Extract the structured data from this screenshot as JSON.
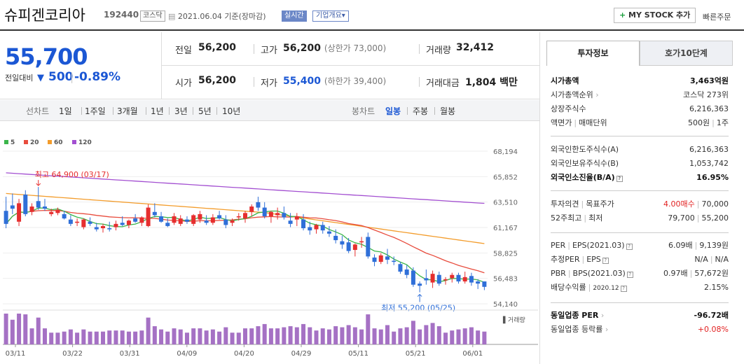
{
  "header": {
    "stock_name": "슈피겐코리아",
    "stock_code": "192440",
    "market": "코스닥",
    "date_text": "2021.06.04 기준(장마감)",
    "realtime_label": "실시간",
    "overview_label": "기업개요▾",
    "mystock_label": "MY STOCK 추가",
    "quick_order_label": "빠른주문"
  },
  "price": {
    "current": "55,700",
    "change_label": "전일대비",
    "change_amount": "500",
    "change_percent": "-0.89%",
    "arrow": "▼"
  },
  "quotes": {
    "prev_close_label": "전일",
    "prev_close": "56,200",
    "high_label": "고가",
    "high": "56,200",
    "upper_limit": "(상한가 73,000)",
    "volume_label": "거래량",
    "volume": "32,412",
    "open_label": "시가",
    "open": "56,200",
    "low_label": "저가",
    "low": "55,400",
    "lower_limit": "(하한가 39,400)",
    "trade_value_label": "거래대금",
    "trade_value": "1,804",
    "trade_value_unit": "백만"
  },
  "period_bar": {
    "line_chart_label": "선차트",
    "line_periods": [
      "1일",
      "1주일",
      "3개월",
      "1년",
      "3년",
      "5년",
      "10년"
    ],
    "candle_label": "봉차트",
    "candle_periods": [
      "일봉",
      "주봉",
      "월봉"
    ],
    "active_candle": "일봉"
  },
  "legend": [
    {
      "label": "5",
      "color": "#3bb54a"
    },
    {
      "label": "20",
      "color": "#e84c3d"
    },
    {
      "label": "60",
      "color": "#f39c2b"
    },
    {
      "label": "120",
      "color": "#a34fd1"
    }
  ],
  "chart_data": {
    "type": "candlestick",
    "y_ticks": [
      "68,194",
      "65,852",
      "63,510",
      "61,167",
      "58,825",
      "56,483",
      "54,140"
    ],
    "ylim": [
      54140,
      68194
    ],
    "x_ticks": [
      "03/11",
      "03/22",
      "03/31",
      "04/09",
      "04/20",
      "04/29",
      "05/11",
      "05/21",
      "06/01"
    ],
    "high_annotation": "최고 64,900 (03/17)",
    "low_annotation": "최저 55,200 (05/25)",
    "volume_label": "거래량",
    "ohlc": [
      [
        62700,
        64000,
        61100,
        61500
      ],
      [
        63200,
        64300,
        62400,
        62900
      ],
      [
        61700,
        63800,
        61300,
        63400
      ],
      [
        64200,
        64600,
        62200,
        62400
      ],
      [
        62600,
        63400,
        62300,
        63100
      ],
      [
        63600,
        64900,
        62800,
        63000
      ],
      [
        63100,
        63800,
        62700,
        62900
      ],
      [
        62400,
        62900,
        62200,
        62600
      ],
      [
        62500,
        63000,
        62300,
        62800
      ],
      [
        62400,
        62700,
        61900,
        62000
      ],
      [
        61900,
        62300,
        61300,
        61500
      ],
      [
        61600,
        62000,
        61300,
        61700
      ],
      [
        61200,
        62000,
        61000,
        61900
      ],
      [
        61700,
        62100,
        61300,
        61500
      ],
      [
        61200,
        61600,
        60800,
        61000
      ],
      [
        61100,
        61500,
        60700,
        61300
      ],
      [
        61100,
        61700,
        60800,
        61000
      ],
      [
        61200,
        61800,
        60900,
        61500
      ],
      [
        61600,
        62200,
        61300,
        61400
      ],
      [
        61400,
        61900,
        61100,
        61800
      ],
      [
        62000,
        62400,
        61600,
        61700
      ],
      [
        61600,
        62200,
        61300,
        62100
      ],
      [
        61300,
        63300,
        61200,
        63000
      ],
      [
        62600,
        63400,
        62100,
        62300
      ],
      [
        62200,
        62600,
        61600,
        61700
      ],
      [
        61600,
        62000,
        61200,
        61300
      ],
      [
        61600,
        62500,
        61400,
        62200
      ],
      [
        61500,
        62300,
        61300,
        62000
      ],
      [
        61900,
        62200,
        61500,
        61700
      ],
      [
        61500,
        62400,
        61300,
        62300
      ],
      [
        61900,
        62700,
        61600,
        62400
      ],
      [
        61800,
        62300,
        61400,
        61600
      ],
      [
        61600,
        62400,
        61400,
        62100
      ],
      [
        62300,
        62700,
        61900,
        62000
      ],
      [
        61900,
        62300,
        61100,
        61400
      ],
      [
        61600,
        62000,
        61300,
        61800
      ],
      [
        62100,
        62500,
        61800,
        62200
      ],
      [
        62000,
        62700,
        61600,
        62500
      ],
      [
        62600,
        63300,
        62200,
        63100
      ],
      [
        63500,
        64000,
        62700,
        63000
      ],
      [
        63000,
        63500,
        62000,
        62200
      ],
      [
        62200,
        62700,
        61600,
        62600
      ],
      [
        62300,
        63000,
        61900,
        62500
      ],
      [
        62500,
        63100,
        61900,
        62100
      ],
      [
        61800,
        62500,
        61200,
        61500
      ],
      [
        61900,
        62500,
        61300,
        62200
      ],
      [
        61900,
        62400,
        60900,
        61100
      ],
      [
        61200,
        61700,
        60500,
        60900
      ],
      [
        61000,
        61500,
        60600,
        61400
      ],
      [
        61400,
        61700,
        60600,
        60900
      ],
      [
        60800,
        61300,
        60300,
        60600
      ],
      [
        60400,
        61000,
        59700,
        60000
      ],
      [
        59900,
        60400,
        59200,
        59600
      ],
      [
        59800,
        60200,
        58800,
        59000
      ],
      [
        59100,
        59700,
        58500,
        59600
      ],
      [
        59800,
        60300,
        59300,
        59900
      ],
      [
        60300,
        60700,
        58300,
        58500
      ],
      [
        58400,
        58700,
        57600,
        58000
      ],
      [
        58000,
        58800,
        57800,
        58600
      ],
      [
        58500,
        59200,
        57800,
        58200
      ],
      [
        58100,
        58500,
        57700,
        58000
      ],
      [
        57800,
        58000,
        56900,
        57100
      ],
      [
        57300,
        57700,
        56500,
        56800
      ],
      [
        57200,
        57500,
        55700,
        55900
      ],
      [
        56000,
        56200,
        55200,
        55800
      ],
      [
        56500,
        57300,
        55900,
        56300
      ],
      [
        56100,
        57200,
        55600,
        56900
      ],
      [
        56800,
        57100,
        55800,
        56000
      ],
      [
        56300,
        56600,
        55900,
        56400
      ],
      [
        56500,
        57000,
        56100,
        56800
      ],
      [
        56800,
        57000,
        56000,
        56200
      ],
      [
        56200,
        57100,
        56000,
        56600
      ],
      [
        56700,
        57000,
        55800,
        56100
      ],
      [
        56200,
        56400,
        55500,
        56000
      ],
      [
        56200,
        56200,
        55400,
        55700
      ]
    ]
  },
  "right_panel": {
    "tab_invest": "투자정보",
    "tab_orderbook": "호가10단계",
    "market_cap_label": "시가총액",
    "market_cap": "3,463억원",
    "market_cap_rank_label": "시가총액순위",
    "market_cap_rank": "코스닥 273위",
    "listed_shares_label": "상장주식수",
    "listed_shares": "6,216,363",
    "par_value_label": "액면가",
    "trade_unit_label": "매매단위",
    "par_value": "500원",
    "trade_unit": "1주",
    "foreign_limit_label": "외국인한도주식수(A)",
    "foreign_limit": "6,216,363",
    "foreign_holding_label": "외국인보유주식수(B)",
    "foreign_holding": "1,053,742",
    "foreign_ratio_label": "외국인소진율(B/A)",
    "foreign_ratio": "16.95%",
    "opinion_label": "투자의견",
    "target_label": "목표주가",
    "opinion": "4.00매수",
    "target": "70,000",
    "range_52w_label": "52주최고",
    "range_52w_low_label": "최저",
    "high_52w": "79,700",
    "low_52w": "55,200",
    "per_label": "PER",
    "eps_label": "EPS(2021.03)",
    "per": "6.09배",
    "eps": "9,139원",
    "est_per_label": "추정PER",
    "est_eps_label": "EPS",
    "est_per": "N/A",
    "est_eps": "N/A",
    "pbr_label": "PBR",
    "bps_label": "BPS(2021.03)",
    "pbr": "0.97배",
    "bps": "57,672원",
    "dividend_label": "배당수익률",
    "dividend_date": "2020.12",
    "dividend": "2.15%",
    "sector_per_label": "동일업종 PER",
    "sector_per": "-96.72배",
    "sector_change_label": "동일업종 등락률",
    "sector_change": "+0.08%"
  }
}
